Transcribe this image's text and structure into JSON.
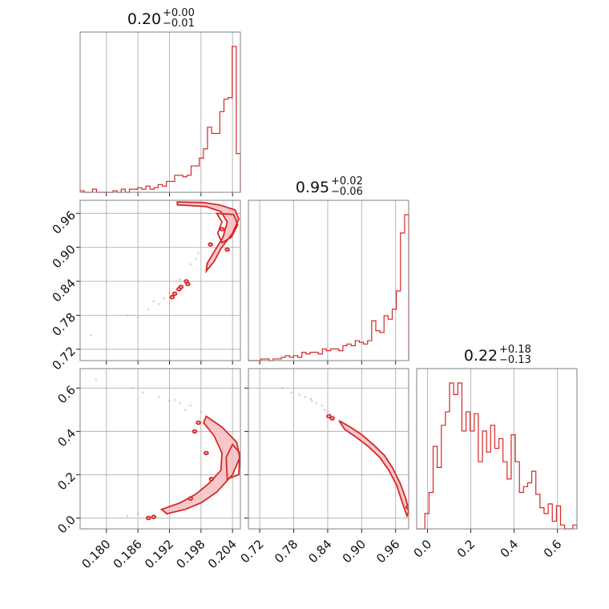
{
  "chart_data": {
    "type": "corner",
    "parameters": [
      {
        "title": {
          "median": "0.20",
          "upper": "+0.00",
          "lower": "−0.01"
        },
        "range": [
          0.175,
          0.2055
        ],
        "ticks": [
          0.18,
          0.186,
          0.192,
          0.198,
          0.204
        ],
        "tick_labels": [
          "0.180",
          "0.186",
          "0.192",
          "0.198",
          "0.204"
        ],
        "hist": [
          0.01,
          0.0,
          0.0,
          0.02,
          0.0,
          0.0,
          0.0,
          0.0,
          0.01,
          0.0,
          0.02,
          0.0,
          0.02,
          0.02,
          0.03,
          0.02,
          0.04,
          0.02,
          0.03,
          0.05,
          0.04,
          0.07,
          0.07,
          0.11,
          0.11,
          0.1,
          0.11,
          0.17,
          0.17,
          0.22,
          0.28,
          0.42,
          0.38,
          0.38,
          0.52,
          0.6,
          0.61,
          0.94,
          0.25
        ]
      },
      {
        "title": {
          "median": "0.95",
          "upper": "+0.02",
          "lower": "−0.06"
        },
        "range": [
          0.7,
          0.983
        ],
        "ticks": [
          0.72,
          0.78,
          0.84,
          0.9,
          0.96
        ],
        "tick_labels": [
          "0.72",
          "0.78",
          "0.84",
          "0.90",
          "0.96"
        ],
        "hist": [
          0.0,
          0.0,
          0.0,
          0.01,
          0.01,
          0.0,
          0.01,
          0.01,
          0.02,
          0.03,
          0.02,
          0.03,
          0.02,
          0.05,
          0.04,
          0.05,
          0.05,
          0.04,
          0.07,
          0.06,
          0.07,
          0.07,
          0.06,
          0.09,
          0.1,
          0.09,
          0.12,
          0.11,
          0.1,
          0.12,
          0.24,
          0.18,
          0.17,
          0.27,
          0.25,
          0.31,
          0.42,
          0.77,
          0.88
        ]
      },
      {
        "title": {
          "median": "0.22",
          "upper": "+0.18",
          "lower": "−0.13"
        },
        "range": [
          -0.05,
          0.69
        ],
        "ticks": [
          0.0,
          0.2,
          0.4,
          0.6
        ],
        "tick_labels": [
          "0.0",
          "0.2",
          "0.4",
          "0.6"
        ],
        "hist": [
          0.0,
          0.0,
          0.08,
          0.19,
          0.43,
          0.32,
          0.54,
          0.61,
          0.76,
          0.7,
          0.76,
          0.51,
          0.61,
          0.51,
          0.6,
          0.35,
          0.51,
          0.4,
          0.54,
          0.42,
          0.47,
          0.35,
          0.26,
          0.49,
          0.35,
          0.19,
          0.22,
          0.24,
          0.3,
          0.18,
          0.11,
          0.08,
          0.13,
          0.04,
          0.12,
          0.02,
          0.0,
          0.0,
          0.02
        ]
      }
    ],
    "pairs": [
      {
        "x_param": 0,
        "y_param": 1,
        "contour_bands": [
          [
            [
              0.1935,
              0.98
            ],
            [
              0.1985,
              0.979
            ],
            [
              0.2015,
              0.975
            ],
            [
              0.2045,
              0.966
            ],
            [
              0.2052,
              0.95
            ],
            [
              0.204,
              0.925
            ],
            [
              0.2018,
              0.898
            ],
            [
              0.2005,
              0.875
            ],
            [
              0.199,
              0.858
            ],
            [
              0.1992,
              0.872
            ],
            [
              0.2005,
              0.892
            ],
            [
              0.2022,
              0.918
            ],
            [
              0.203,
              0.945
            ],
            [
              0.2018,
              0.963
            ],
            [
              0.199,
              0.972
            ],
            [
              0.1935,
              0.975
            ]
          ],
          [
            [
              0.201,
              0.96
            ],
            [
              0.2042,
              0.958
            ],
            [
              0.205,
              0.94
            ],
            [
              0.2038,
              0.918
            ],
            [
              0.202,
              0.908
            ],
            [
              0.2012,
              0.925
            ],
            [
              0.202,
              0.945
            ]
          ]
        ],
        "contour_specks": [
          [
            0.1952,
            0.84
          ],
          [
            0.1955,
            0.835
          ],
          [
            0.1942,
            0.83
          ],
          [
            0.1938,
            0.826
          ],
          [
            0.193,
            0.818
          ],
          [
            0.1925,
            0.812
          ],
          [
            0.1998,
            0.905
          ],
          [
            0.202,
            0.932
          ],
          [
            0.203,
            0.896
          ]
        ],
        "scatter": [
          [
            0.177,
            0.745
          ],
          [
            0.184,
            0.78
          ],
          [
            0.186,
            0.776
          ],
          [
            0.188,
            0.79
          ],
          [
            0.19,
            0.8
          ],
          [
            0.191,
            0.81
          ],
          [
            0.192,
            0.82
          ],
          [
            0.196,
            0.87
          ],
          [
            0.197,
            0.88
          ],
          [
            0.1975,
            0.89
          ],
          [
            0.194,
            0.843
          ],
          [
            0.189,
            0.805
          ]
        ]
      },
      {
        "x_param": 0,
        "y_param": 2,
        "contour_bands": [
          [
            [
              0.1915,
              0.02
            ],
            [
              0.195,
              0.04
            ],
            [
              0.198,
              0.07
            ],
            [
              0.201,
              0.12
            ],
            [
              0.204,
              0.2
            ],
            [
              0.2054,
              0.28
            ],
            [
              0.2048,
              0.35
            ],
            [
              0.202,
              0.42
            ],
            [
              0.199,
              0.47
            ],
            [
              0.1985,
              0.44
            ],
            [
              0.2005,
              0.38
            ],
            [
              0.202,
              0.3
            ],
            [
              0.2018,
              0.22
            ],
            [
              0.1995,
              0.16
            ],
            [
              0.197,
              0.11
            ],
            [
              0.194,
              0.07
            ],
            [
              0.1905,
              0.04
            ]
          ],
          [
            [
              0.203,
              0.18
            ],
            [
              0.2052,
              0.2
            ],
            [
              0.2054,
              0.3
            ],
            [
              0.204,
              0.34
            ],
            [
              0.2028,
              0.28
            ]
          ]
        ],
        "contour_specks": [
          [
            0.189,
            0.005
          ],
          [
            0.188,
            0.0
          ],
          [
            0.1975,
            0.44
          ],
          [
            0.1968,
            0.4
          ],
          [
            0.199,
            0.3
          ],
          [
            0.2,
            0.18
          ],
          [
            0.196,
            0.09
          ]
        ],
        "scatter": [
          [
            0.178,
            0.64
          ],
          [
            0.185,
            0.6
          ],
          [
            0.187,
            0.58
          ],
          [
            0.19,
            0.56
          ],
          [
            0.192,
            0.54
          ],
          [
            0.194,
            0.53
          ],
          [
            0.196,
            0.52
          ],
          [
            0.184,
            0.01
          ],
          [
            0.186,
            0.02
          ],
          [
            0.195,
            0.5
          ],
          [
            0.193,
            0.545
          ],
          [
            0.198,
            0.49
          ]
        ]
      },
      {
        "x_param": 1,
        "y_param": 2,
        "contour_bands": [
          [
            [
              0.86,
              0.45
            ],
            [
              0.88,
              0.42
            ],
            [
              0.9,
              0.385
            ],
            [
              0.92,
              0.34
            ],
            [
              0.94,
              0.29
            ],
            [
              0.955,
              0.23
            ],
            [
              0.968,
              0.16
            ],
            [
              0.978,
              0.09
            ],
            [
              0.983,
              0.03
            ],
            [
              0.98,
              0.01
            ],
            [
              0.972,
              0.07
            ],
            [
              0.962,
              0.15
            ],
            [
              0.948,
              0.22
            ],
            [
              0.932,
              0.28
            ],
            [
              0.912,
              0.33
            ],
            [
              0.892,
              0.37
            ],
            [
              0.87,
              0.41
            ]
          ]
        ],
        "contour_specks": [
          [
            0.848,
            0.46
          ],
          [
            0.842,
            0.47
          ],
          [
            0.982,
            0.05
          ]
        ],
        "scatter": [
          [
            0.79,
            0.57
          ],
          [
            0.8,
            0.56
          ],
          [
            0.81,
            0.55
          ],
          [
            0.82,
            0.53
          ],
          [
            0.83,
            0.52
          ],
          [
            0.835,
            0.5
          ],
          [
            0.84,
            0.49
          ],
          [
            0.845,
            0.48
          ],
          [
            0.85,
            0.47
          ],
          [
            0.776,
            0.58
          ],
          [
            0.76,
            0.6
          ],
          [
            0.812,
            0.54
          ]
        ]
      }
    ]
  }
}
